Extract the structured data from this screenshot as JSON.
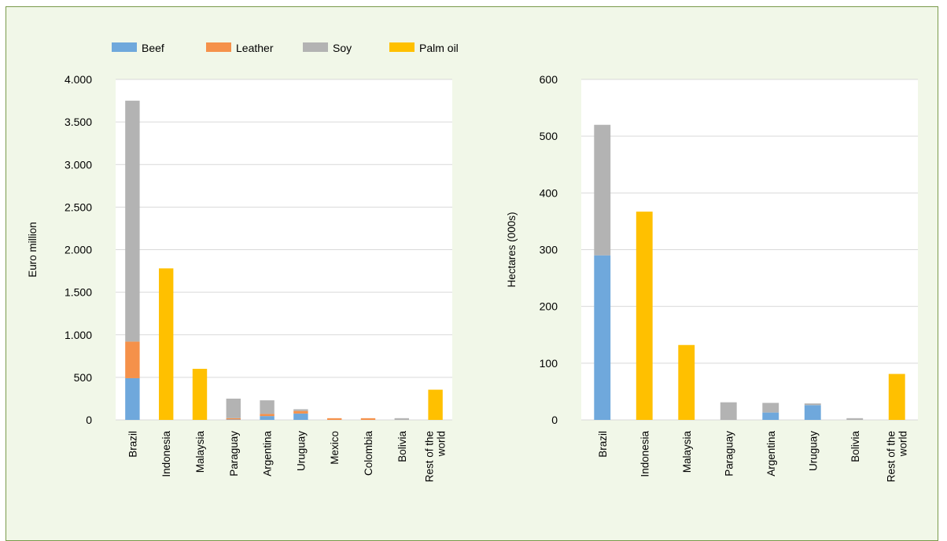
{
  "colors": {
    "Beef": "#6fa8dc",
    "Leather": "#f5914a",
    "Soy": "#b3b3b3",
    "Palm oil": "#ffc000",
    "plot_bg": "#ffffff",
    "frame_bg": "#f1f7e8",
    "frame_border": "#7a9a4b",
    "grid": "#d9d9d9"
  },
  "legend": {
    "items": [
      "Beef",
      "Leather",
      "Soy",
      "Palm oil"
    ]
  },
  "chart_data": [
    {
      "type": "bar",
      "stacked": true,
      "ylabel": "Euro million",
      "ylim": [
        0,
        4000
      ],
      "yticks": [
        0,
        500,
        1000,
        1500,
        2000,
        2500,
        3000,
        3500,
        4000
      ],
      "ytick_labels": [
        "0",
        "500",
        "1.000",
        "1.500",
        "2.000",
        "2.500",
        "3.000",
        "3.500",
        "4.000"
      ],
      "grid": true,
      "categories": [
        "Brazil",
        "Indonesia",
        "Malaysia",
        "Paraguay",
        "Argentina",
        "Uruguay",
        "Mexico",
        "Colombia",
        "Bolivia",
        "Rest of the world"
      ],
      "series": [
        {
          "name": "Beef",
          "values": [
            490,
            0,
            0,
            5,
            45,
            75,
            0,
            0,
            0,
            0
          ]
        },
        {
          "name": "Leather",
          "values": [
            430,
            0,
            0,
            15,
            25,
            30,
            20,
            20,
            0,
            0
          ]
        },
        {
          "name": "Soy",
          "values": [
            2830,
            0,
            0,
            230,
            160,
            20,
            0,
            0,
            20,
            0
          ]
        },
        {
          "name": "Palm oil",
          "values": [
            0,
            1780,
            600,
            0,
            0,
            0,
            0,
            0,
            0,
            355
          ]
        }
      ]
    },
    {
      "type": "bar",
      "stacked": true,
      "ylabel": "Hectares (000s)",
      "ylim": [
        0,
        600
      ],
      "yticks": [
        0,
        100,
        200,
        300,
        400,
        500,
        600
      ],
      "ytick_labels": [
        "0",
        "100",
        "200",
        "300",
        "400",
        "500",
        "600"
      ],
      "grid": true,
      "categories": [
        "Brazil",
        "Indonesia",
        "Malaysia",
        "Paraguay",
        "Argentina",
        "Uruguay",
        "Bolivia",
        "Rest of the world"
      ],
      "series": [
        {
          "name": "Beef",
          "values": [
            290,
            0,
            0,
            0,
            13,
            26,
            0,
            0
          ]
        },
        {
          "name": "Leather",
          "values": [
            0,
            0,
            0,
            0,
            0,
            0,
            0,
            0
          ]
        },
        {
          "name": "Soy",
          "values": [
            230,
            0,
            0,
            31,
            17,
            3,
            3,
            0
          ]
        },
        {
          "name": "Palm oil",
          "values": [
            0,
            367,
            132,
            0,
            0,
            0,
            0,
            81
          ]
        }
      ]
    }
  ]
}
